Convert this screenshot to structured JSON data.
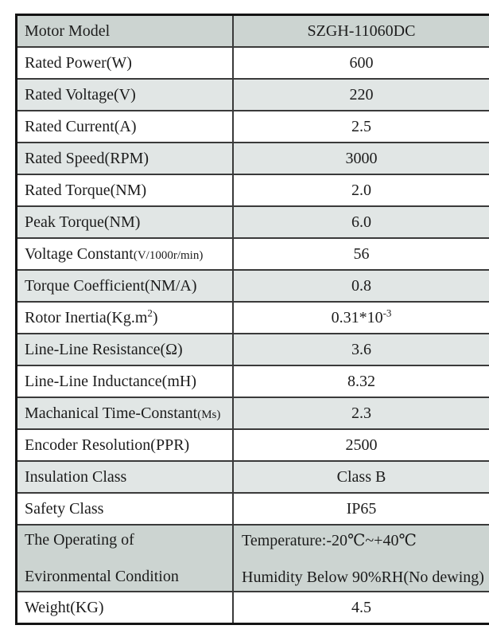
{
  "colors": {
    "row_dark": "#ccd4d1",
    "row_light": "#e1e6e5",
    "row_white": "#ffffff",
    "border_outer": "#141414",
    "border_inner": "#3a3a3a",
    "text": "#1c1c1c",
    "page_bg": "#ffffff"
  },
  "table": {
    "rows": [
      {
        "label": "Motor Model",
        "value": "SZGH-11060DC",
        "shade": "dark"
      },
      {
        "label": "Rated Power(W)",
        "value": "600",
        "shade": "white"
      },
      {
        "label": "Rated Voltage(V)",
        "value": "220",
        "shade": "light"
      },
      {
        "label": "Rated Current(A)",
        "value": "2.5",
        "shade": "white"
      },
      {
        "label": "Rated Speed(RPM)",
        "value": "3000",
        "shade": "light"
      },
      {
        "label": "Rated Torque(NM)",
        "value": "2.0",
        "shade": "white"
      },
      {
        "label": "Peak Torque(NM)",
        "value": "6.0",
        "shade": "light"
      },
      {
        "label": "Voltage Constant",
        "label_small": "(V/1000r/min)",
        "value": "56",
        "shade": "white"
      },
      {
        "label": "Torque Coefficient(NM/A)",
        "value": "0.8",
        "shade": "light"
      },
      {
        "label": "Rotor Inertia(Kg.m",
        "label_sup": "2",
        "label_tail": ")",
        "value": "0.31*10",
        "value_sup": "-3",
        "shade": "white"
      },
      {
        "label": "Line-Line Resistance(Ω)",
        "value": "3.6",
        "shade": "light"
      },
      {
        "label": "Line-Line Inductance(mH)",
        "value": "8.32",
        "shade": "white"
      },
      {
        "label": "Machanical Time-Constant",
        "label_small": "(Ms)",
        "value": "2.3",
        "shade": "light"
      },
      {
        "label": "Encoder Resolution(PPR)",
        "value": "2500",
        "shade": "white"
      },
      {
        "label": "Insulation Class",
        "value": "Class B",
        "shade": "light"
      },
      {
        "label": "Safety Class",
        "value": "IP65",
        "shade": "white"
      },
      {
        "label_line1": "The Operating of",
        "label_line2": "Evironmental Condition",
        "value_line1": "Temperature:-20℃~+40℃",
        "value_line2": "Humidity Below 90%RH(No dewing)",
        "shade": "dark"
      },
      {
        "label": "Weight(KG)",
        "value": "4.5",
        "shade": "white"
      }
    ]
  }
}
